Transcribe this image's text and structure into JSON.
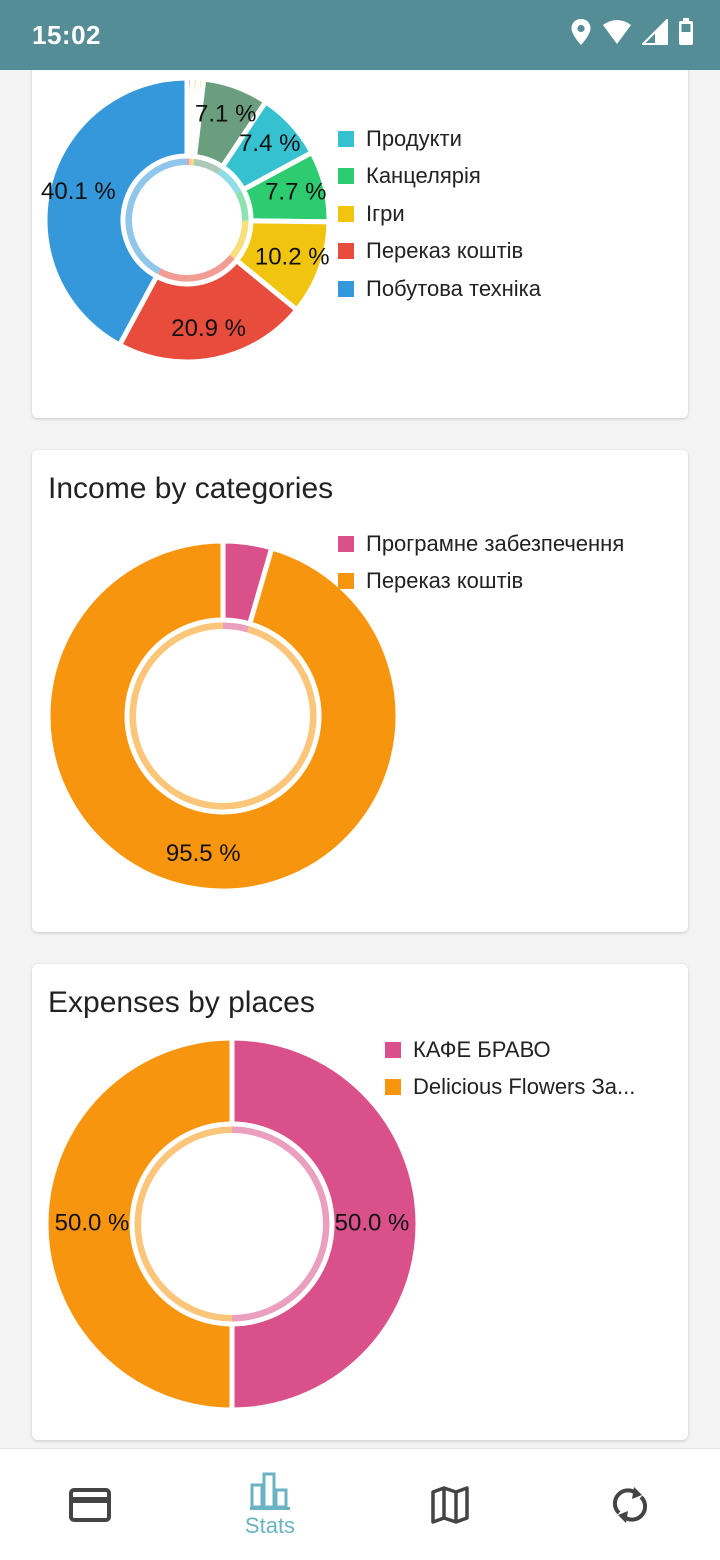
{
  "status_bar": {
    "time": "15:02",
    "icons": [
      "location-icon",
      "wifi-icon",
      "signal-icon",
      "battery-icon"
    ]
  },
  "cards": [
    {
      "title": "",
      "chart_data": {
        "type": "pie",
        "title": "",
        "donut": true,
        "legend_position": "right",
        "categories": [
          "",
          "",
          "",
          "",
          "Продукти",
          "Канцелярія",
          "Ігри",
          "Переказ коштів",
          "Побутова техніка"
        ],
        "values": [
          0.6,
          0.6,
          0.6,
          7.1,
          7.4,
          7.7,
          10.2,
          20.9,
          40.1
        ],
        "labels": [
          "",
          "",
          "",
          "7.1 %",
          "7.4 %",
          "7.7 %",
          "10.2 %",
          "20.9 %",
          "40.1 %"
        ],
        "colors": [
          "#d94f8a",
          "#f59b16",
          "#f2c418",
          "#6a9e7f",
          "#35c1cf",
          "#2ecc71",
          "#f1c40f",
          "#e74c3c",
          "#3598db"
        ]
      },
      "legend": [
        {
          "label": "Продукти",
          "color": "#35c1cf"
        },
        {
          "label": "Канцелярія",
          "color": "#2ecc71"
        },
        {
          "label": "Ігри",
          "color": "#f1c40f"
        },
        {
          "label": "Переказ коштів",
          "color": "#e74c3c"
        },
        {
          "label": "Побутова техніка",
          "color": "#3598db"
        }
      ]
    },
    {
      "title": "Income by categories",
      "chart_data": {
        "type": "pie",
        "title": "Income by categories",
        "donut": true,
        "legend_position": "right",
        "categories": [
          "Програмне забезпечення",
          "Переказ коштів"
        ],
        "values": [
          4.5,
          95.5
        ],
        "labels": [
          "",
          "95.5 %"
        ],
        "colors": [
          "#d9508a",
          "#f8950e"
        ]
      },
      "legend": [
        {
          "label": "Програмне забезпечення",
          "color": "#d9508a"
        },
        {
          "label": "Переказ коштів",
          "color": "#f8950e"
        }
      ]
    },
    {
      "title": "Expenses by places",
      "chart_data": {
        "type": "pie",
        "title": "Expenses by places",
        "donut": true,
        "legend_position": "right",
        "categories": [
          "КАФЕ БРАВО",
          "Delicious Flowers За..."
        ],
        "values": [
          50.0,
          50.0
        ],
        "labels": [
          "50.0 %",
          "50.0 %"
        ],
        "colors": [
          "#d9508a",
          "#f8950e"
        ]
      },
      "legend": [
        {
          "label": "КАФЕ БРАВО",
          "color": "#d9508a"
        },
        {
          "label": "Delicious Flowers За...",
          "color": "#f8950e"
        }
      ]
    }
  ],
  "bottom_nav": {
    "active_color": "#6bb3c2",
    "inactive_color": "#444444",
    "items": [
      {
        "icon": "credit-card-icon",
        "label": ""
      },
      {
        "icon": "bar-chart-icon",
        "label": "Stats"
      },
      {
        "icon": "map-icon",
        "label": ""
      },
      {
        "icon": "sync-icon",
        "label": ""
      }
    ]
  }
}
